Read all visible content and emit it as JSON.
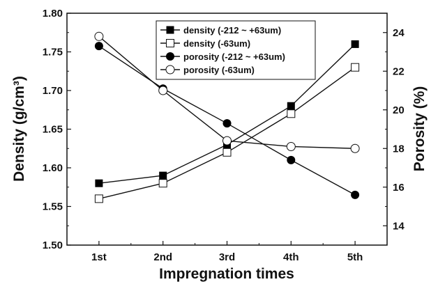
{
  "chart_data": {
    "type": "line",
    "categories": [
      "1st",
      "2nd",
      "3rd",
      "4th",
      "5th"
    ],
    "xlabel": "Impregnation times",
    "ylabel": "Density (g/cm³)",
    "y2label": "Porosity (%)",
    "ylim": [
      1.5,
      1.8
    ],
    "y2lim": [
      13,
      25
    ],
    "yticks": [
      "1.50",
      "1.55",
      "1.60",
      "1.65",
      "1.70",
      "1.75",
      "1.80"
    ],
    "y2ticks": [
      "14",
      "16",
      "18",
      "20",
      "22",
      "24"
    ],
    "legend_position": "top-center",
    "grid": false,
    "series": [
      {
        "name": "density (-212 ~ +63um)",
        "axis": "left",
        "marker": "filled-square",
        "values": [
          1.58,
          1.59,
          1.63,
          1.68,
          1.76
        ]
      },
      {
        "name": "density (-63um)",
        "axis": "left",
        "marker": "open-square",
        "values": [
          1.56,
          1.58,
          1.62,
          1.67,
          1.73
        ]
      },
      {
        "name": "porosity (-212 ~ +63um)",
        "axis": "right",
        "marker": "filled-circle",
        "values": [
          23.3,
          21.1,
          19.3,
          17.4,
          15.6
        ]
      },
      {
        "name": "porosity (-63um)",
        "axis": "right",
        "marker": "open-circle",
        "values": [
          23.8,
          21.0,
          18.4,
          18.1,
          18.0
        ]
      }
    ]
  }
}
